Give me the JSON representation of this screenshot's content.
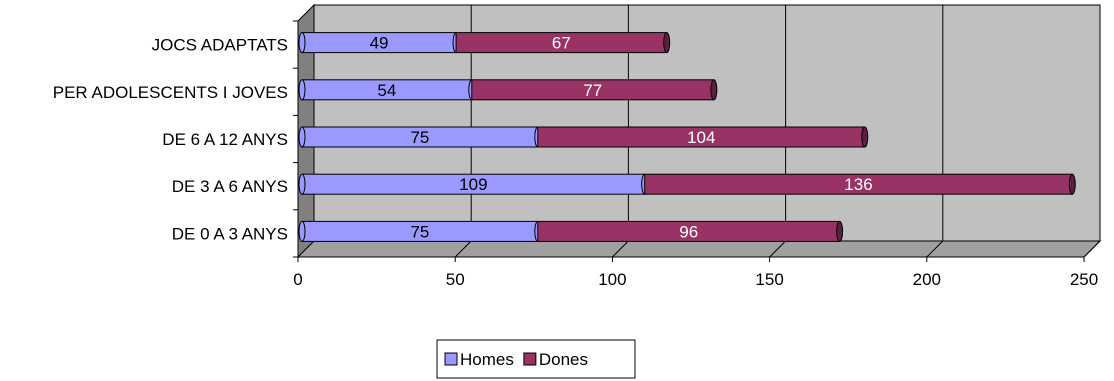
{
  "chart_data": {
    "type": "bar",
    "orientation": "horizontal",
    "stacked": true,
    "style": "3d",
    "categories": [
      "DE 0 A 3 ANYS",
      "DE 3 A 6 ANYS",
      "DE 6 A 12 ANYS",
      "PER ADOLESCENTS I JOVES",
      "JOCS ADAPTATS"
    ],
    "series": [
      {
        "name": "Homes",
        "values": [
          75,
          109,
          75,
          54,
          49
        ],
        "color": "#9999ff",
        "label_color": "#000000"
      },
      {
        "name": "Dones",
        "values": [
          96,
          136,
          104,
          77,
          67
        ],
        "color": "#993366",
        "label_color": "#ffffff"
      }
    ],
    "xlim": [
      0,
      250
    ],
    "xticks": [
      0,
      50,
      100,
      150,
      200,
      250
    ],
    "grid": true,
    "background_color": "#c0c0c0",
    "legend_position": "bottom"
  }
}
